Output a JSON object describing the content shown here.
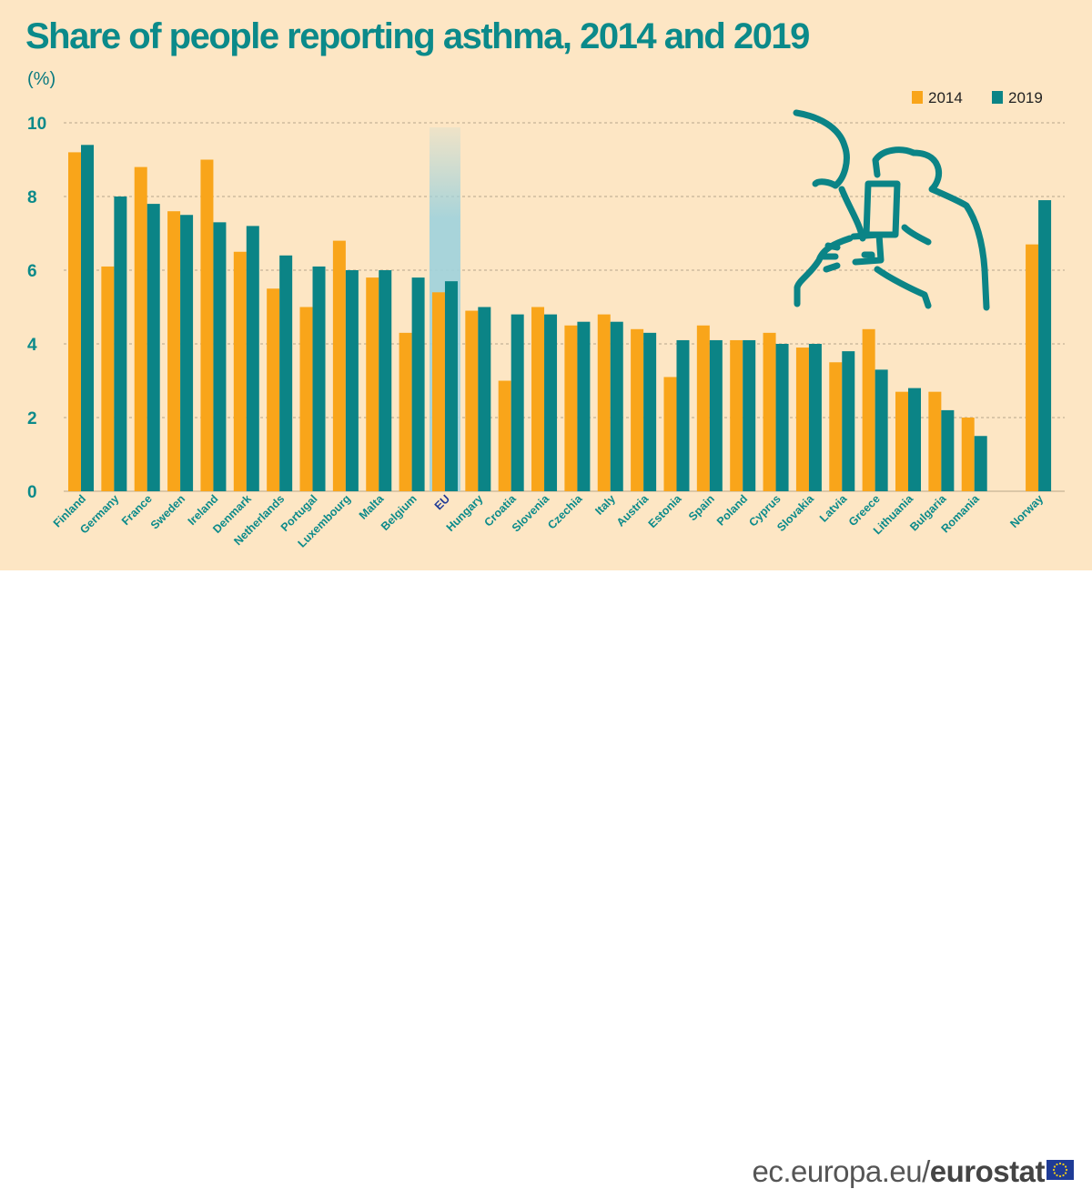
{
  "title": "Share of people reporting asthma, 2014 and 2019",
  "unit": "(%)",
  "source_domain": "ec.europa.eu/",
  "source_brand": "eurostat",
  "colors": {
    "s2014": "#f9a51a",
    "s2019": "#0b8486",
    "teal_text": "#0b8a8a",
    "background": "#fde6c4",
    "eu_highlight": "#9fd2dc"
  },
  "icons": [
    "inhaler-illustration-icon",
    "eu-flag-icon"
  ],
  "chart_data": {
    "type": "bar",
    "title": "Share of people reporting asthma, 2014 and 2019",
    "xlabel": "",
    "ylabel": "(%)",
    "ylim": [
      0,
      10
    ],
    "yticks": [
      0,
      2,
      4,
      6,
      8,
      10
    ],
    "grid": true,
    "legend_position": "top-right",
    "highlight_category": "EU",
    "categories": [
      "Finland",
      "Germany",
      "France",
      "Sweden",
      "Ireland",
      "Denmark",
      "Netherlands",
      "Portugal",
      "Luxembourg",
      "Malta",
      "Belgium",
      "EU",
      "Hungary",
      "Croatia",
      "Slovenia",
      "Czechia",
      "Italy",
      "Austria",
      "Estonia",
      "Spain",
      "Poland",
      "Cyprus",
      "Slovakia",
      "Latvia",
      "Greece",
      "Lithuania",
      "Bulgaria",
      "Romania",
      "Norway"
    ],
    "series": [
      {
        "name": "2014",
        "values": [
          9.2,
          6.1,
          8.8,
          7.6,
          9.0,
          6.5,
          5.5,
          5.0,
          6.8,
          5.8,
          4.3,
          5.4,
          4.9,
          3.0,
          5.0,
          4.5,
          4.8,
          4.4,
          3.1,
          4.5,
          4.1,
          4.3,
          3.9,
          3.5,
          4.4,
          2.7,
          2.7,
          2.0,
          6.7
        ]
      },
      {
        "name": "2019",
        "values": [
          9.4,
          8.0,
          7.8,
          7.5,
          7.3,
          7.2,
          6.4,
          6.1,
          6.0,
          6.0,
          5.8,
          5.7,
          5.0,
          4.8,
          4.8,
          4.6,
          4.6,
          4.3,
          4.1,
          4.1,
          4.1,
          4.0,
          4.0,
          3.8,
          3.3,
          2.8,
          2.2,
          1.5,
          7.9
        ]
      }
    ]
  }
}
